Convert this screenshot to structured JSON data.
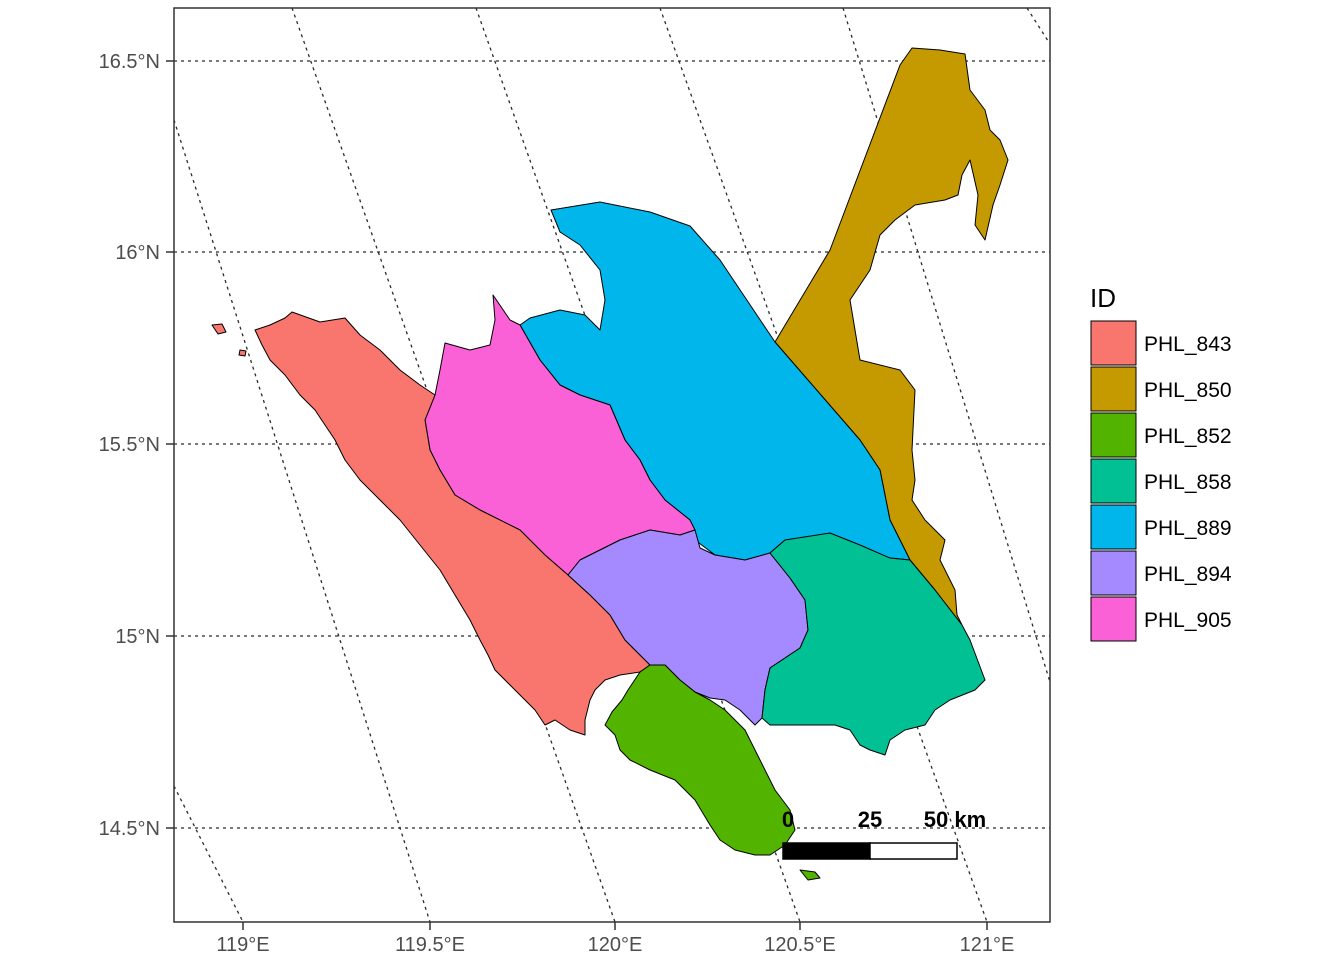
{
  "map": {
    "y_axis_labels": [
      "16.5°N",
      "16°N",
      "15.5°N",
      "15°N",
      "14.5°N"
    ],
    "x_axis_labels": [
      "119°E",
      "119.5°E",
      "120°E",
      "120.5°E",
      "121°E"
    ],
    "legend": {
      "title": "ID",
      "items": [
        {
          "label": "PHL_843",
          "color": "#F8766D"
        },
        {
          "label": "PHL_850",
          "color": "#C49A00"
        },
        {
          "label": "PHL_852",
          "color": "#53B400"
        },
        {
          "label": "PHL_858",
          "color": "#00C094"
        },
        {
          "label": "PHL_889",
          "color": "#00B6EB"
        },
        {
          "label": "PHL_894",
          "color": "#A58AFF"
        },
        {
          "label": "PHL_905",
          "color": "#FB61D7"
        }
      ]
    },
    "scale_bar": {
      "labels": [
        "0",
        "25",
        "50 km"
      ]
    }
  }
}
